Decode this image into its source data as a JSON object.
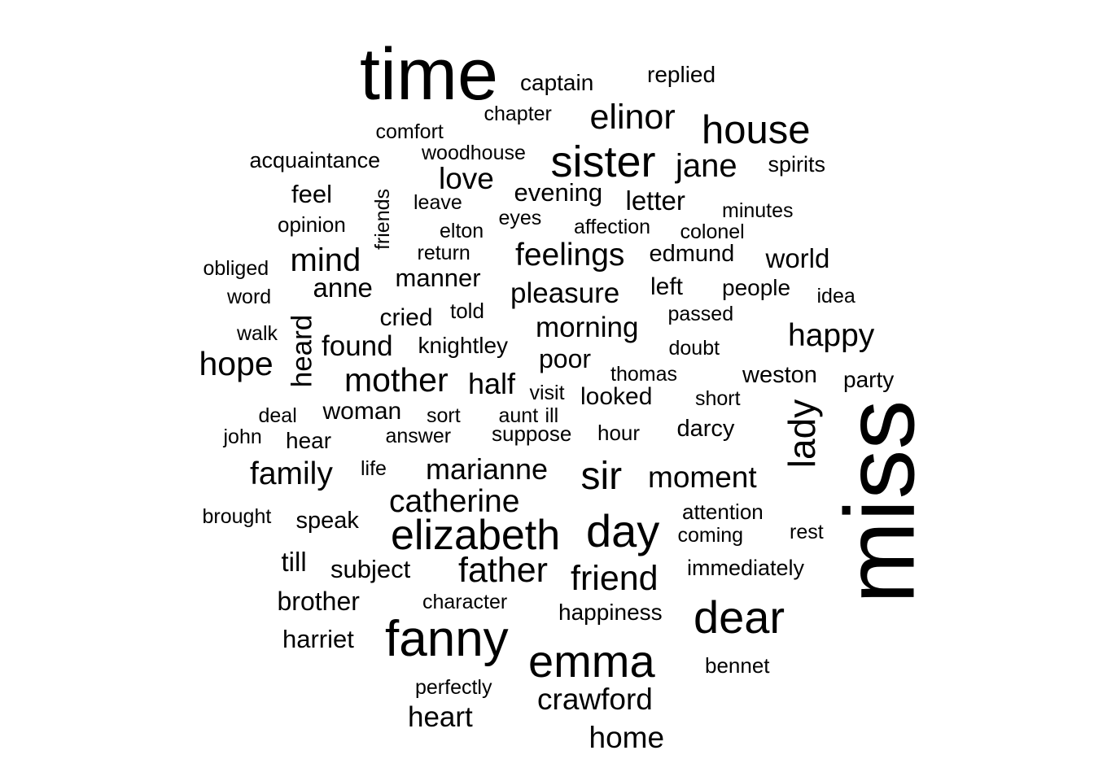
{
  "chart_data": {
    "type": "wordcloud",
    "words": [
      {
        "text": "miss",
        "freq": 100,
        "rotated": true
      },
      {
        "text": "time",
        "freq": 90
      },
      {
        "text": "fanny",
        "freq": 68
      },
      {
        "text": "emma",
        "freq": 60
      },
      {
        "text": "dear",
        "freq": 60
      },
      {
        "text": "elizabeth",
        "freq": 55
      },
      {
        "text": "day",
        "freq": 58
      },
      {
        "text": "sister",
        "freq": 57
      },
      {
        "text": "house",
        "freq": 52
      },
      {
        "text": "sir",
        "freq": 50
      },
      {
        "text": "lady",
        "freq": 50,
        "rotated": true
      },
      {
        "text": "elinor",
        "freq": 47
      },
      {
        "text": "friend",
        "freq": 45
      },
      {
        "text": "father",
        "freq": 45
      },
      {
        "text": "mother",
        "freq": 44
      },
      {
        "text": "hope",
        "freq": 44
      },
      {
        "text": "catherine",
        "freq": 42
      },
      {
        "text": "feelings",
        "freq": 42
      },
      {
        "text": "family",
        "freq": 42
      },
      {
        "text": "happy",
        "freq": 42
      },
      {
        "text": "jane",
        "freq": 42
      },
      {
        "text": "mind",
        "freq": 42
      },
      {
        "text": "crawford",
        "freq": 40
      },
      {
        "text": "home",
        "freq": 40
      },
      {
        "text": "moment",
        "freq": 40
      },
      {
        "text": "love",
        "freq": 39
      },
      {
        "text": "marianne",
        "freq": 38
      },
      {
        "text": "half",
        "freq": 38
      },
      {
        "text": "heart",
        "freq": 38
      },
      {
        "text": "pleasure",
        "freq": 37
      },
      {
        "text": "morning",
        "freq": 37
      },
      {
        "text": "found",
        "freq": 37
      },
      {
        "text": "heard",
        "freq": 37,
        "rotated": true
      },
      {
        "text": "anne",
        "freq": 35
      },
      {
        "text": "letter",
        "freq": 35
      },
      {
        "text": "till",
        "freq": 35
      },
      {
        "text": "world",
        "freq": 35
      },
      {
        "text": "poor",
        "freq": 34
      },
      {
        "text": "brother",
        "freq": 34
      },
      {
        "text": "harriet",
        "freq": 33
      },
      {
        "text": "subject",
        "freq": 33
      },
      {
        "text": "evening",
        "freq": 33
      },
      {
        "text": "feel",
        "freq": 33
      },
      {
        "text": "manner",
        "freq": 33
      },
      {
        "text": "cried",
        "freq": 32
      },
      {
        "text": "looked",
        "freq": 32
      },
      {
        "text": "woman",
        "freq": 32
      },
      {
        "text": "left",
        "freq": 32
      },
      {
        "text": "edmund",
        "freq": 31
      },
      {
        "text": "speak",
        "freq": 31
      },
      {
        "text": "weston",
        "freq": 31
      },
      {
        "text": "darcy",
        "freq": 31
      },
      {
        "text": "people",
        "freq": 30
      },
      {
        "text": "hear",
        "freq": 31
      },
      {
        "text": "captain",
        "freq": 30
      },
      {
        "text": "replied",
        "freq": 30
      },
      {
        "text": "happiness",
        "freq": 30
      },
      {
        "text": "knightley",
        "freq": 30
      },
      {
        "text": "party",
        "freq": 30
      },
      {
        "text": "immediately",
        "freq": 29
      },
      {
        "text": "acquaintance",
        "freq": 29
      },
      {
        "text": "spirits",
        "freq": 29
      },
      {
        "text": "opinion",
        "freq": 28
      },
      {
        "text": "told",
        "freq": 28
      },
      {
        "text": "hour",
        "freq": 28
      },
      {
        "text": "suppose",
        "freq": 28
      },
      {
        "text": "attention",
        "freq": 28
      },
      {
        "text": "bennet",
        "freq": 28
      },
      {
        "text": "affection",
        "freq": 27
      },
      {
        "text": "character",
        "freq": 27
      },
      {
        "text": "comfort",
        "freq": 27
      },
      {
        "text": "chapter",
        "freq": 27
      },
      {
        "text": "woodhouse",
        "freq": 27
      },
      {
        "text": "leave",
        "freq": 27
      },
      {
        "text": "eyes",
        "freq": 27
      },
      {
        "text": "elton",
        "freq": 27
      },
      {
        "text": "return",
        "freq": 27
      },
      {
        "text": "colonel",
        "freq": 27
      },
      {
        "text": "minutes",
        "freq": 27
      },
      {
        "text": "obliged",
        "freq": 27
      },
      {
        "text": "word",
        "freq": 27
      },
      {
        "text": "idea",
        "freq": 27
      },
      {
        "text": "passed",
        "freq": 27
      },
      {
        "text": "walk",
        "freq": 27
      },
      {
        "text": "doubt",
        "freq": 27
      },
      {
        "text": "thomas",
        "freq": 27
      },
      {
        "text": "visit",
        "freq": 27
      },
      {
        "text": "aunt",
        "freq": 27
      },
      {
        "text": "ill",
        "freq": 27
      },
      {
        "text": "short",
        "freq": 27
      },
      {
        "text": "deal",
        "freq": 27
      },
      {
        "text": "sort",
        "freq": 27
      },
      {
        "text": "john",
        "freq": 27
      },
      {
        "text": "answer",
        "freq": 27
      },
      {
        "text": "life",
        "freq": 27
      },
      {
        "text": "brought",
        "freq": 27
      },
      {
        "text": "coming",
        "freq": 27
      },
      {
        "text": "rest",
        "freq": 27
      },
      {
        "text": "perfectly",
        "freq": 27
      },
      {
        "text": "friends",
        "freq": 27,
        "rotated": true
      }
    ]
  }
}
